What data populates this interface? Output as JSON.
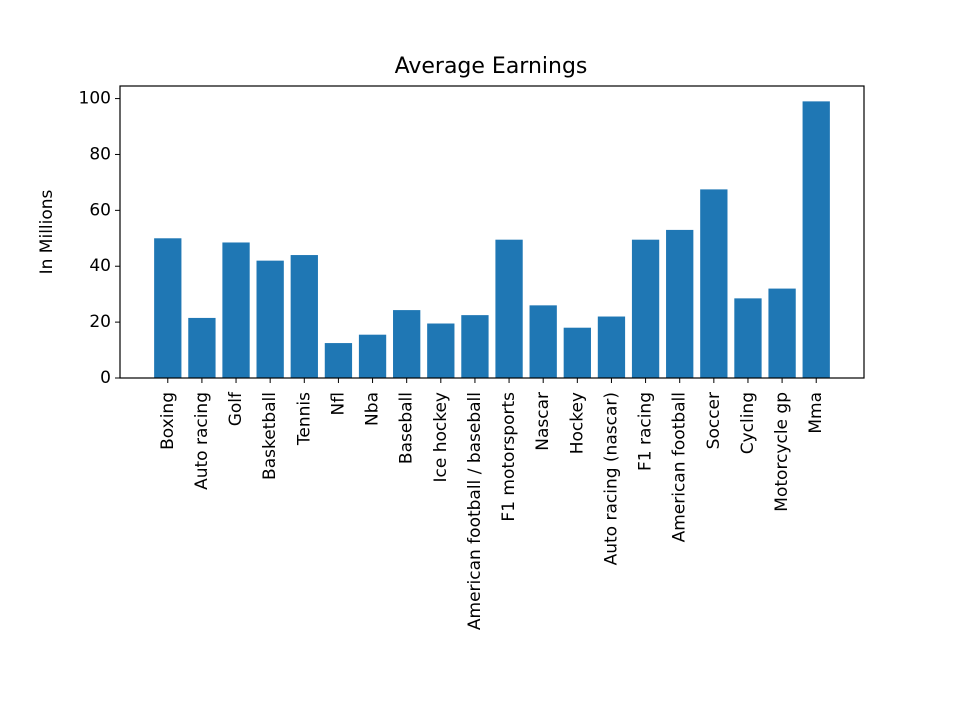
{
  "chart_data": {
    "type": "bar",
    "title": "Average Earnings",
    "xlabel": "",
    "ylabel": "In Millions",
    "categories": [
      "Boxing",
      "Auto racing",
      "Golf",
      "Basketball",
      "Tennis",
      "Nfl",
      "Nba",
      "Baseball",
      "Ice hockey",
      "American football / baseball",
      "F1 motorsports",
      "Nascar",
      "Hockey",
      "Auto racing (nascar)",
      "F1 racing",
      "American football",
      "Soccer",
      "Cycling",
      "Motorcycle gp",
      "Mma"
    ],
    "values": [
      50,
      21.5,
      48.5,
      42,
      44,
      12.5,
      15.5,
      24.3,
      19.5,
      22.5,
      49.5,
      26,
      18,
      22,
      49.5,
      53,
      67.5,
      28.5,
      32,
      99
    ],
    "ylim": [
      0,
      104.5
    ],
    "yticks": [
      0,
      20,
      40,
      60,
      80,
      100
    ],
    "bar_color": "#1f77b4",
    "grid": false,
    "legend": "none"
  }
}
